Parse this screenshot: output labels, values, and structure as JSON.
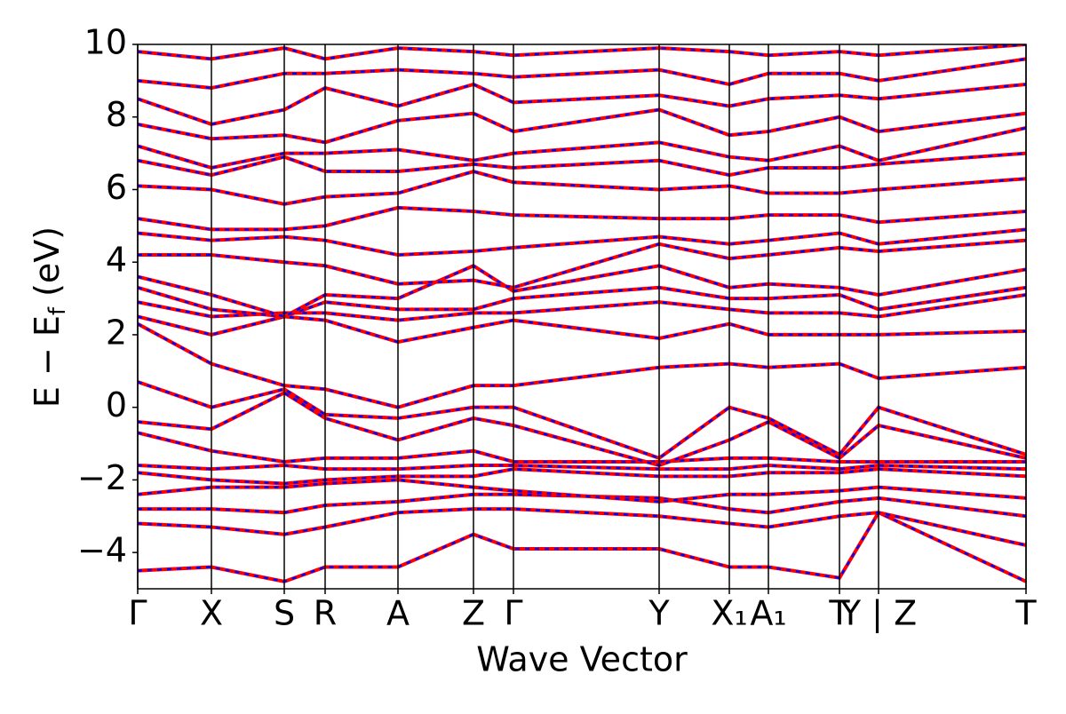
{
  "chart_data": {
    "type": "band-structure",
    "xlabel": "Wave Vector",
    "ylabel": [
      "E − E",
      "f",
      " (eV)"
    ],
    "color": "#ff0000",
    "overlay_color": "#0000ff",
    "xlim": [
      0,
      1000
    ],
    "xticks": [
      {
        "value": 0,
        "label": "Γ"
      },
      {
        "value": 83,
        "label": "X"
      },
      {
        "value": 165,
        "label": "S"
      },
      {
        "value": 211,
        "label": "R"
      },
      {
        "value": 293,
        "label": "A"
      },
      {
        "value": 378,
        "label": "Z"
      },
      {
        "value": 423,
        "label": "Γ"
      },
      {
        "value": 587,
        "label": "Y"
      },
      {
        "value": 666,
        "label": "X₁"
      },
      {
        "value": 710,
        "label": "A₁"
      },
      {
        "value": 790,
        "label": "T"
      },
      {
        "value": 834,
        "label": "Y | Z"
      },
      {
        "value": 1000,
        "label": "T"
      }
    ],
    "ylim": [
      -5,
      10
    ],
    "yticks": [
      {
        "value": -4,
        "label": "−4"
      },
      {
        "value": -2,
        "label": "−2"
      },
      0,
      2,
      4,
      6,
      8,
      10
    ],
    "x": [
      0,
      83,
      165,
      211,
      293,
      378,
      423,
      587,
      666,
      710,
      790,
      834,
      1000
    ],
    "series": [
      {
        "values": [
          -4.5,
          -4.4,
          -4.8,
          -4.4,
          -4.4,
          -3.5,
          -3.9,
          -3.9,
          -4.4,
          -4.4,
          -4.7,
          -2.9,
          -4.8
        ]
      },
      {
        "values": [
          -3.2,
          -3.3,
          -3.5,
          -3.3,
          -2.9,
          -2.8,
          -2.8,
          -3.0,
          -3.2,
          -3.3,
          -3.0,
          -2.9,
          -3.8
        ]
      },
      {
        "values": [
          -2.8,
          -2.8,
          -2.9,
          -2.7,
          -2.6,
          -2.4,
          -2.4,
          -2.5,
          -2.8,
          -2.9,
          -2.6,
          -2.5,
          -3.0
        ]
      },
      {
        "values": [
          -2.4,
          -2.2,
          -2.2,
          -2.1,
          -2.0,
          -2.2,
          -2.3,
          -2.6,
          -2.4,
          -2.4,
          -2.3,
          -2.2,
          -2.5
        ]
      },
      {
        "values": [
          -1.8,
          -2.0,
          -2.1,
          -2.0,
          -1.9,
          -1.9,
          -1.7,
          -1.9,
          -1.9,
          -1.8,
          -1.8,
          -1.7,
          -1.9
        ]
      },
      {
        "values": [
          -1.6,
          -1.7,
          -1.6,
          -1.7,
          -1.7,
          -1.6,
          -1.6,
          -1.7,
          -1.7,
          -1.6,
          -1.7,
          -1.6,
          -1.7
        ]
      },
      {
        "values": [
          -0.7,
          -1.2,
          -1.5,
          -1.4,
          -1.4,
          -1.2,
          -1.5,
          -1.5,
          -1.4,
          -1.4,
          -1.5,
          -1.5,
          -1.5
        ]
      },
      {
        "values": [
          -0.4,
          -0.6,
          0.4,
          -0.3,
          -0.9,
          -0.3,
          -0.5,
          -1.6,
          -0.9,
          -0.4,
          -1.4,
          -0.5,
          -1.4
        ]
      },
      {
        "values": [
          0.7,
          0.0,
          0.5,
          -0.2,
          -0.3,
          0.0,
          0.0,
          -1.4,
          0.0,
          -0.3,
          -1.3,
          0.0,
          -1.3
        ]
      },
      {
        "values": [
          2.3,
          1.2,
          0.6,
          0.5,
          0.0,
          0.6,
          0.6,
          1.1,
          1.2,
          1.1,
          1.2,
          0.8,
          1.1
        ]
      },
      {
        "values": [
          2.5,
          2.0,
          2.5,
          2.4,
          1.8,
          2.2,
          2.4,
          1.9,
          2.3,
          2.0,
          2.0,
          2.0,
          2.1
        ]
      },
      {
        "values": [
          2.9,
          2.5,
          2.6,
          2.6,
          2.4,
          2.6,
          2.6,
          2.9,
          2.7,
          2.6,
          2.6,
          2.5,
          3.1
        ]
      },
      {
        "values": [
          3.3,
          2.7,
          2.5,
          2.9,
          2.7,
          2.7,
          3.0,
          3.3,
          3.0,
          3.0,
          3.1,
          2.7,
          3.3
        ]
      },
      {
        "values": [
          3.6,
          3.1,
          2.5,
          3.1,
          3.0,
          3.9,
          3.2,
          3.9,
          3.3,
          3.4,
          3.3,
          3.1,
          3.8
        ]
      },
      {
        "values": [
          4.2,
          4.2,
          4.0,
          3.9,
          3.4,
          3.5,
          3.3,
          4.5,
          4.1,
          4.2,
          4.4,
          4.3,
          4.6
        ]
      },
      {
        "values": [
          4.8,
          4.6,
          4.7,
          4.6,
          4.2,
          4.3,
          4.4,
          4.7,
          4.5,
          4.6,
          4.8,
          4.5,
          4.9
        ]
      },
      {
        "values": [
          5.2,
          4.9,
          4.9,
          5.0,
          5.5,
          5.4,
          5.3,
          5.2,
          5.2,
          5.3,
          5.3,
          5.1,
          5.4
        ]
      },
      {
        "values": [
          6.1,
          6.0,
          5.6,
          5.8,
          5.9,
          6.5,
          6.2,
          6.0,
          6.1,
          5.9,
          5.9,
          6.0,
          6.3
        ]
      },
      {
        "values": [
          6.8,
          6.4,
          6.9,
          6.5,
          6.5,
          6.7,
          6.6,
          6.8,
          6.4,
          6.6,
          6.6,
          6.7,
          7.0
        ]
      },
      {
        "values": [
          7.2,
          6.6,
          7.0,
          7.0,
          7.1,
          6.8,
          7.0,
          7.3,
          6.9,
          6.8,
          7.2,
          6.8,
          7.7
        ]
      },
      {
        "values": [
          7.8,
          7.4,
          7.5,
          7.3,
          7.9,
          8.1,
          7.6,
          8.2,
          7.5,
          7.6,
          8.0,
          7.6,
          8.1
        ]
      },
      {
        "values": [
          8.5,
          7.8,
          8.2,
          8.8,
          8.3,
          8.9,
          8.4,
          8.6,
          8.3,
          8.5,
          8.6,
          8.5,
          8.9
        ]
      },
      {
        "values": [
          9.0,
          8.8,
          9.2,
          9.2,
          9.3,
          9.2,
          9.1,
          9.3,
          8.9,
          9.2,
          9.2,
          9.0,
          9.6
        ]
      },
      {
        "values": [
          9.8,
          9.6,
          9.9,
          9.6,
          9.9,
          9.8,
          9.7,
          9.9,
          9.8,
          9.7,
          9.8,
          9.7,
          10.0
        ]
      }
    ]
  }
}
